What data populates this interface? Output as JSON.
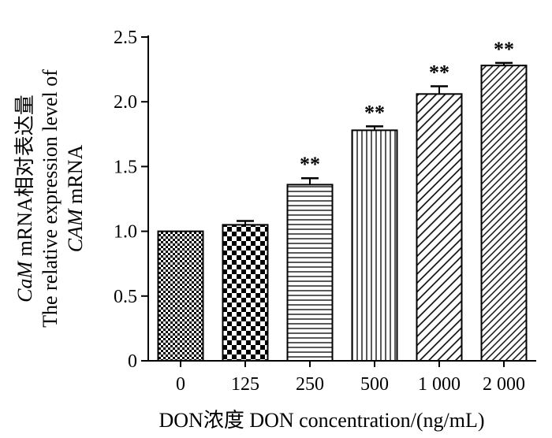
{
  "chart_data": {
    "type": "bar",
    "categories": [
      "0",
      "125",
      "250",
      "500",
      "1 000",
      "2 000"
    ],
    "values": [
      1.0,
      1.05,
      1.36,
      1.78,
      2.06,
      2.28
    ],
    "errors": [
      0.0,
      0.03,
      0.05,
      0.03,
      0.06,
      0.02
    ],
    "significance": [
      "",
      "",
      "**",
      "**",
      "**",
      "**"
    ],
    "xlabel": "DON浓度 DON concentration/(ng/mL)",
    "ylabel": {
      "line1_italic": "CaM",
      "line1_rest": " mRNA相对表达量",
      "line2": "The relative expression level of",
      "line3_italic": "CAM",
      "line3_rest": " mRNA"
    },
    "ylim": [
      0,
      2.5
    ],
    "yticks": [
      "0",
      "0.5",
      "1.0",
      "1.5",
      "2.0",
      "2.5"
    ],
    "grid": false,
    "bar_patterns": [
      "fine-checker",
      "checker",
      "horizontal-lines",
      "vertical-lines",
      "diagonal-lines",
      "dense-diagonal-lines"
    ]
  }
}
